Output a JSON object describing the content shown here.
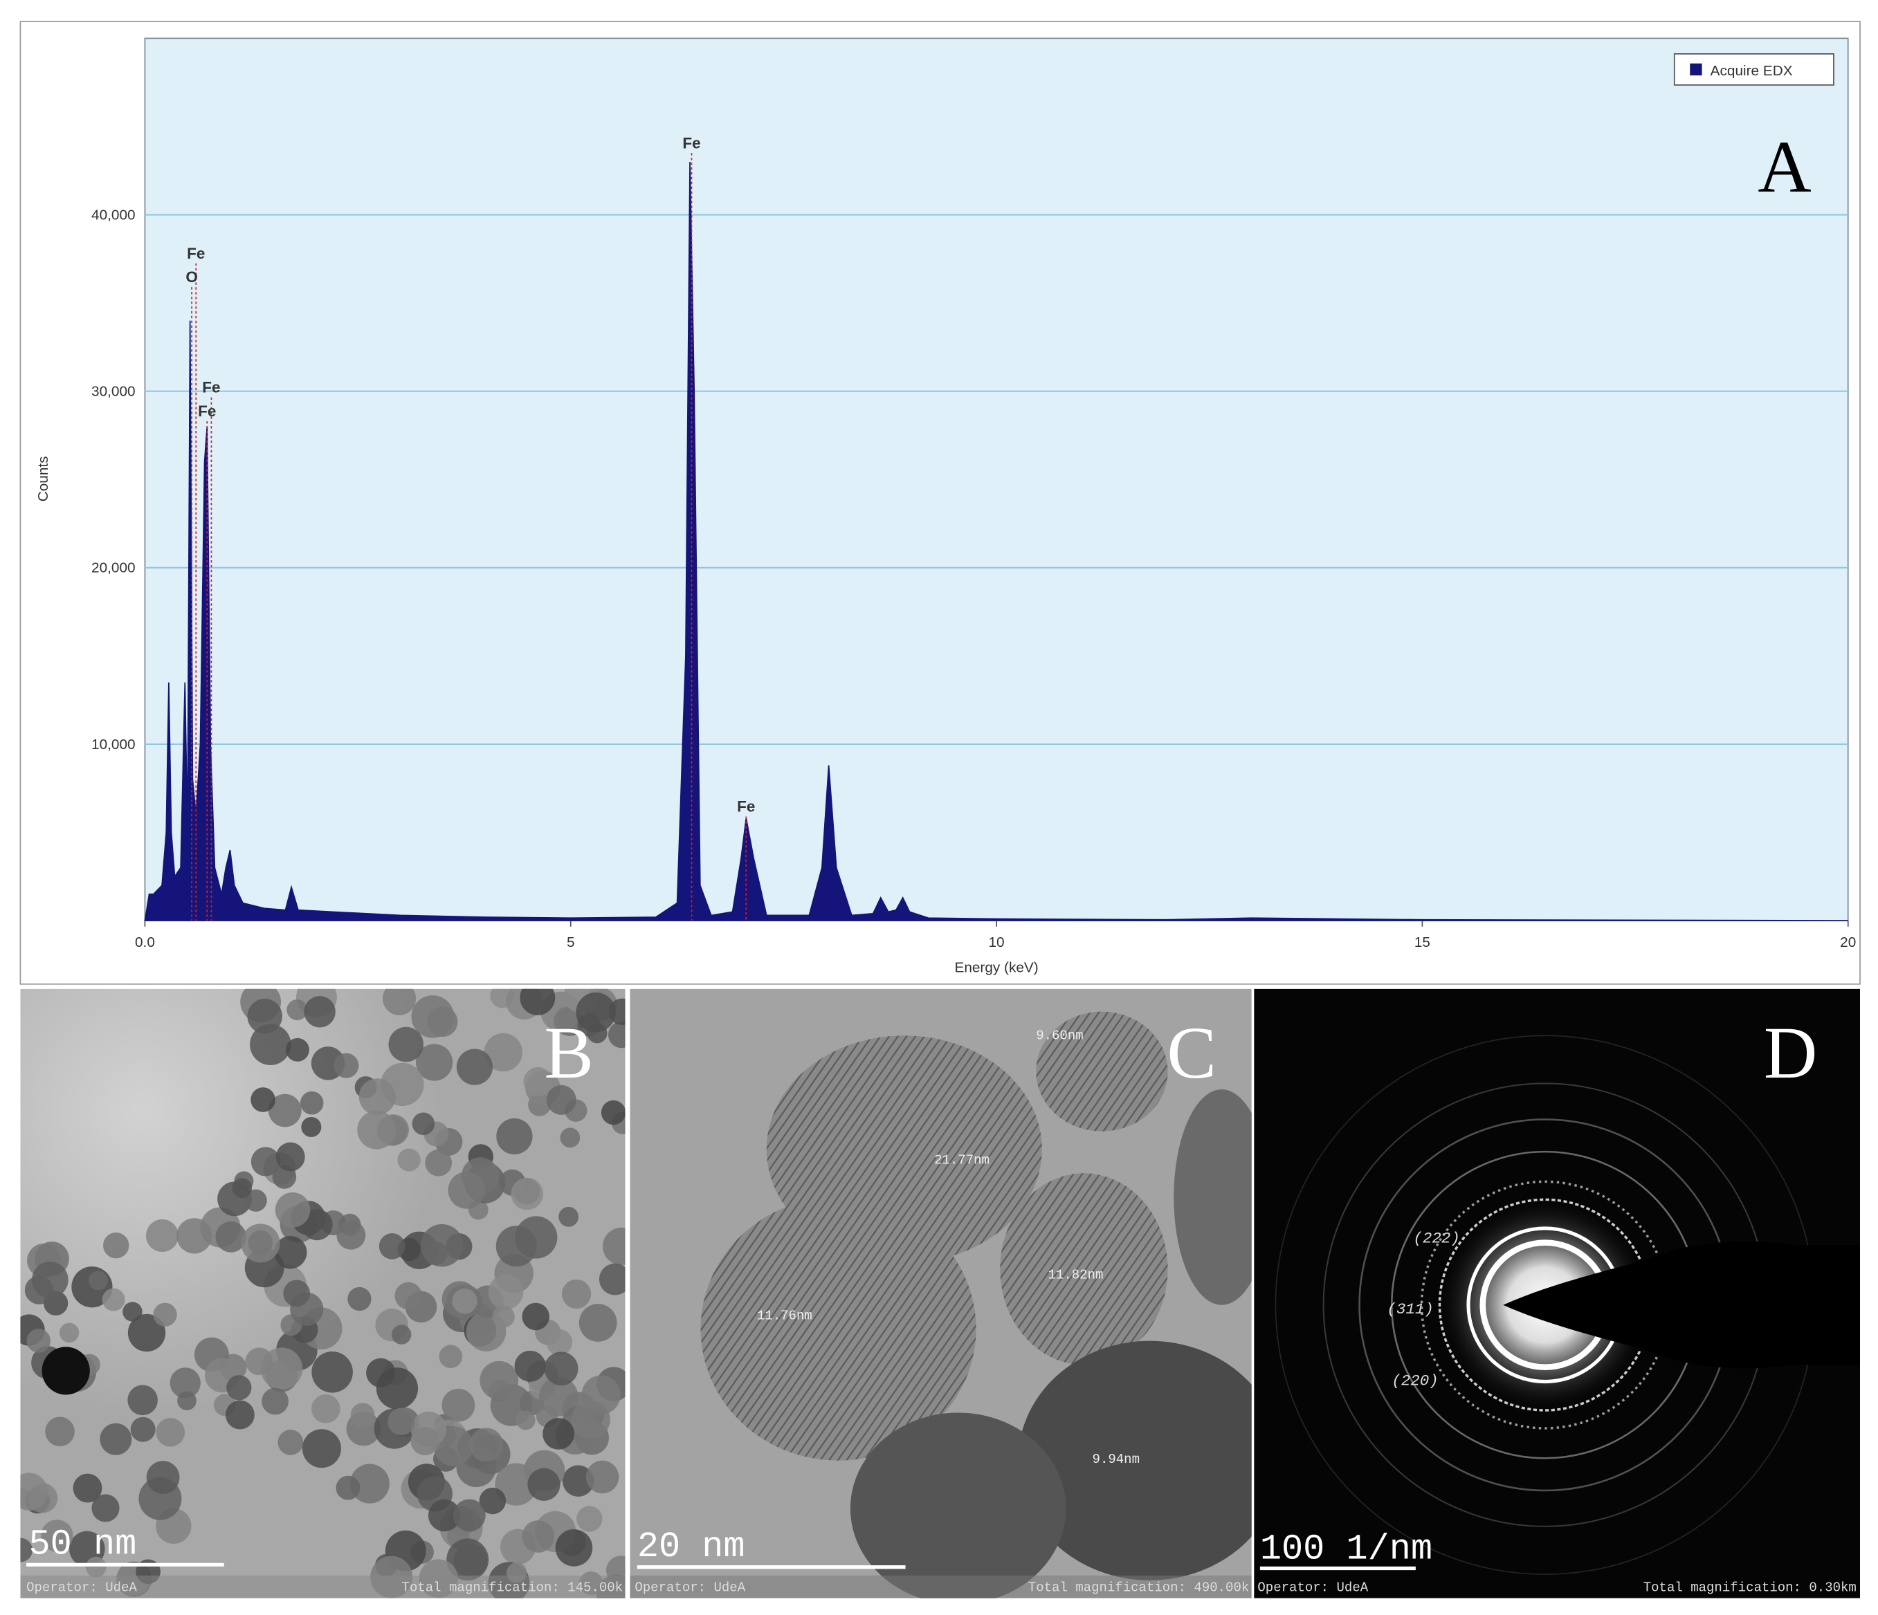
{
  "chart_data": {
    "type": "area",
    "panel_label": "A",
    "x_label": "Energy (keV)",
    "y_label": "Counts",
    "legend": "Acquire EDX",
    "legend_position": "upper right",
    "color": "#14147a",
    "grid": true,
    "xlim": [
      0,
      20
    ],
    "xticks": [
      {
        "value": 0,
        "label": "0.0"
      },
      5,
      10,
      15,
      20
    ],
    "ylim": [
      0,
      50000
    ],
    "yticks": [
      {
        "value": 10000,
        "label": "10,000"
      },
      {
        "value": 20000,
        "label": "20,000"
      },
      {
        "value": 30000,
        "label": "30,000"
      },
      {
        "value": 40000,
        "label": "40,000"
      }
    ],
    "x": [
      0,
      0.05,
      0.1,
      0.2,
      0.25,
      0.28,
      0.31,
      0.35,
      0.42,
      0.47,
      0.5,
      0.53,
      0.56,
      0.6,
      0.65,
      0.7,
      0.73,
      0.77,
      0.82,
      0.9,
      0.95,
      1.0,
      1.05,
      1.15,
      1.4,
      1.65,
      1.72,
      1.8,
      2.2,
      3.0,
      4.0,
      5.0,
      6.0,
      6.25,
      6.35,
      6.4,
      6.45,
      6.52,
      6.65,
      6.9,
      7.0,
      7.06,
      7.15,
      7.3,
      7.8,
      7.95,
      8.03,
      8.12,
      8.3,
      8.55,
      8.64,
      8.73,
      8.82,
      8.9,
      8.98,
      9.2,
      10,
      12,
      13,
      15,
      20
    ],
    "values": [
      0,
      1500,
      1500,
      2000,
      5000,
      13500,
      5000,
      2500,
      3000,
      13500,
      5000,
      34000,
      8000,
      6000,
      10000,
      26000,
      28000,
      10000,
      3000,
      1500,
      3000,
      4000,
      2000,
      1000,
      700,
      600,
      1900,
      600,
      500,
      300,
      200,
      150,
      200,
      1000,
      15000,
      43000,
      30000,
      2000,
      300,
      500,
      3500,
      5800,
      3500,
      300,
      300,
      3000,
      8800,
      3000,
      300,
      400,
      1300,
      500,
      600,
      1300,
      500,
      150,
      100,
      50,
      150,
      50,
      0
    ],
    "annotations": [
      {
        "text": "Fe",
        "x": 0.6,
        "y": 37250
      },
      {
        "text": "O",
        "x": 0.55,
        "y": 35900
      },
      {
        "text": "Fe",
        "x": 0.78,
        "y": 29650
      },
      {
        "text": "Fe",
        "x": 0.73,
        "y": 28300
      },
      {
        "text": "Fe",
        "x": 6.42,
        "y": 43500
      },
      {
        "text": "Fe",
        "x": 7.06,
        "y": 5900
      }
    ]
  },
  "images": [
    {
      "label": "B",
      "scale_bar": "50 nm",
      "operator": "Operator: UdeA",
      "magnification": "Total magnification: 145.00k"
    },
    {
      "label": "C",
      "scale_bar": "20 nm",
      "operator": "Operator: UdeA",
      "magnification": "Total magnification: 490.00k",
      "measurements": [
        "21.77nm",
        "11.76nm",
        "11.82nm",
        "9.94nm",
        "9.60nm"
      ]
    },
    {
      "label": "D",
      "scale_bar": "100 1/nm",
      "operator": "Operator: UdeA",
      "magnification": "Total magnification: 0.30km",
      "planes": [
        "(222)",
        "(311)",
        "(220)"
      ]
    }
  ]
}
